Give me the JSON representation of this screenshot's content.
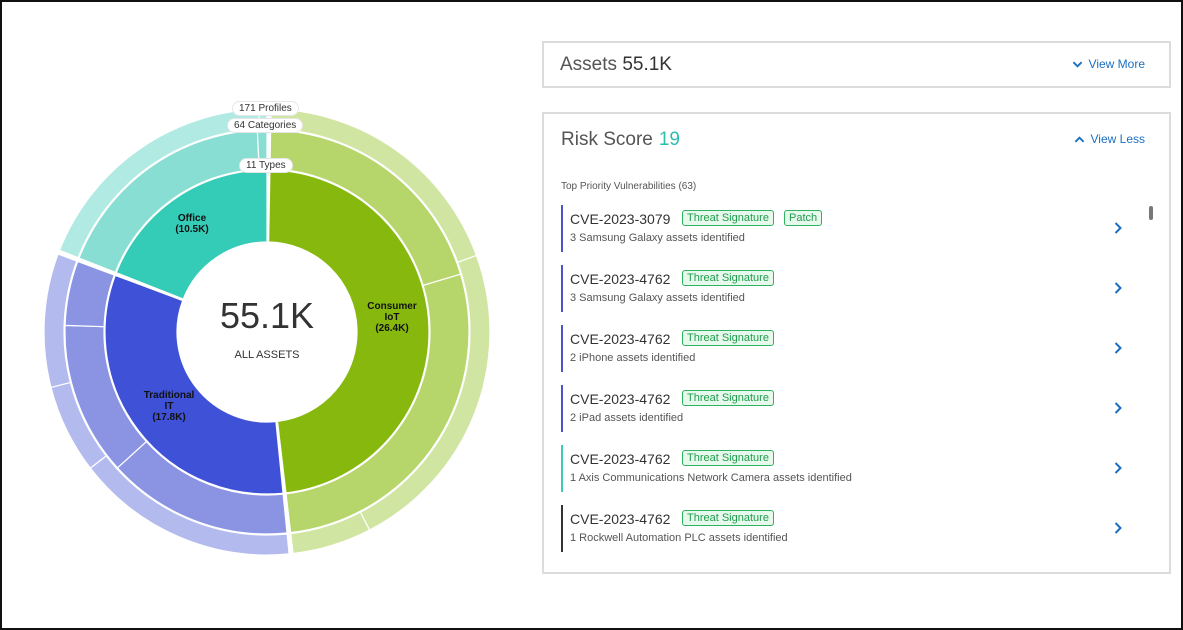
{
  "chart": {
    "center_value": "55.1K",
    "center_label": "ALL ASSETS",
    "rings": {
      "profiles": "171 Profiles",
      "categories": "64 Categories",
      "types": "11 Types"
    },
    "segments": {
      "consumer_iot": {
        "name": "Consumer IoT",
        "line1": "Consumer",
        "line2": "IoT",
        "value": "(26.4K)"
      },
      "traditional_it": {
        "name": "Traditional IT",
        "line1": "Traditional",
        "line2": "IT",
        "value": "(17.8K)"
      },
      "office": {
        "name": "Office",
        "line1": "Office",
        "value": "(10.5K)"
      }
    }
  },
  "chart_data": {
    "type": "pie",
    "title": "",
    "center_total": "55.1K",
    "center_label": "ALL ASSETS",
    "ring_labels": [
      "11 Types",
      "64 Categories",
      "171 Profiles"
    ],
    "categories": [
      "Consumer IoT",
      "Traditional IT",
      "Office"
    ],
    "values": [
      26.4,
      17.8,
      10.5
    ],
    "colors": [
      "#86b80e",
      "#3f51d7",
      "#34cbb7"
    ]
  },
  "assets": {
    "label": "Assets",
    "count": "55.1K",
    "view_more": "View More"
  },
  "risk": {
    "label": "Risk Score",
    "score": "19",
    "view_less": "View Less",
    "priority_title": "Top Priority Vulnerabilities (63)",
    "vulns": [
      {
        "cve": "CVE-2023-3079",
        "badges": [
          "Threat Signature",
          "Patch"
        ],
        "desc": "3 Samsung Galaxy assets identified",
        "color": "#4a55c7"
      },
      {
        "cve": "CVE-2023-4762",
        "badges": [
          "Threat Signature"
        ],
        "desc": "3 Samsung Galaxy assets identified",
        "color": "#4a55c7"
      },
      {
        "cve": "CVE-2023-4762",
        "badges": [
          "Threat Signature"
        ],
        "desc": "2 iPhone assets identified",
        "color": "#4a55c7"
      },
      {
        "cve": "CVE-2023-4762",
        "badges": [
          "Threat Signature"
        ],
        "desc": "2 iPad assets identified",
        "color": "#4a55c7"
      },
      {
        "cve": "CVE-2023-4762",
        "badges": [
          "Threat Signature"
        ],
        "desc": "1 Axis Communications Network Camera assets identified",
        "color": "#3ec9b5"
      },
      {
        "cve": "CVE-2023-4762",
        "badges": [
          "Threat Signature"
        ],
        "desc": "1 Rockwell Automation PLC assets identified",
        "color": "#333333"
      }
    ]
  }
}
